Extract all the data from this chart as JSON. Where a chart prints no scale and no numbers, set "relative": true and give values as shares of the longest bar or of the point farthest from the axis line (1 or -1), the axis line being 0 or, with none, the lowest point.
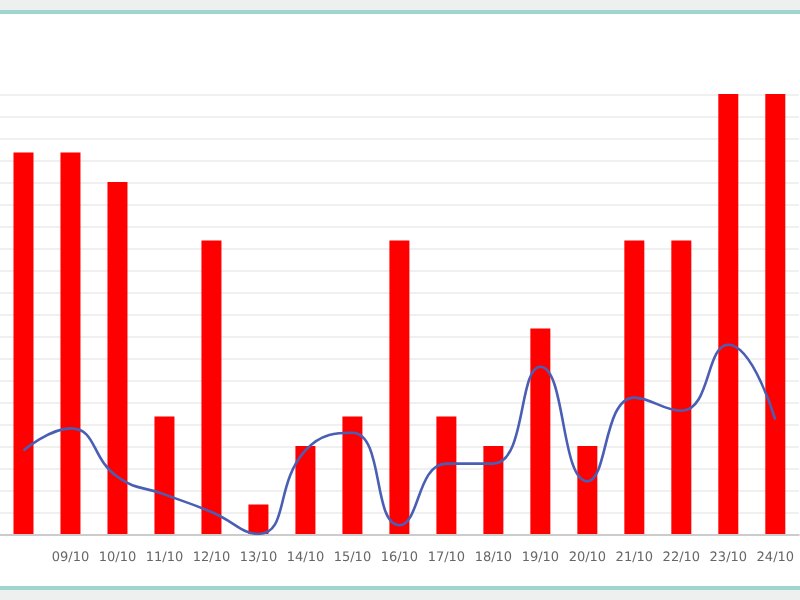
{
  "chart_data": {
    "type": "bar",
    "relative": true,
    "grid": "y",
    "marker": "none",
    "categories": [
      null,
      "09/10",
      "10/10",
      "11/10",
      "12/10",
      "13/10",
      "14/10",
      "15/10",
      "16/10",
      "17/10",
      "18/10",
      "19/10",
      "20/10",
      "21/10",
      "22/10",
      "23/10",
      "24/10"
    ],
    "series": [
      {
        "color": "#ff0000",
        "values": [
          0.867,
          0.867,
          0.8,
          0.267,
          0.667,
          0.067,
          0.2,
          0.267,
          0.667,
          0.267,
          0.2,
          0.467,
          0.2,
          0.667,
          0.667,
          1,
          1
        ]
      },
      {
        "type": "line",
        "color": "#4a5fb4",
        "values": [
          0.19,
          0.24,
          0.13,
          0.09,
          0.05,
          0,
          0.19,
          0.23,
          0.02,
          0.16,
          0.16,
          0.38,
          0.12,
          0.31,
          0.28,
          0.43,
          0.26
        ]
      }
    ]
  }
}
